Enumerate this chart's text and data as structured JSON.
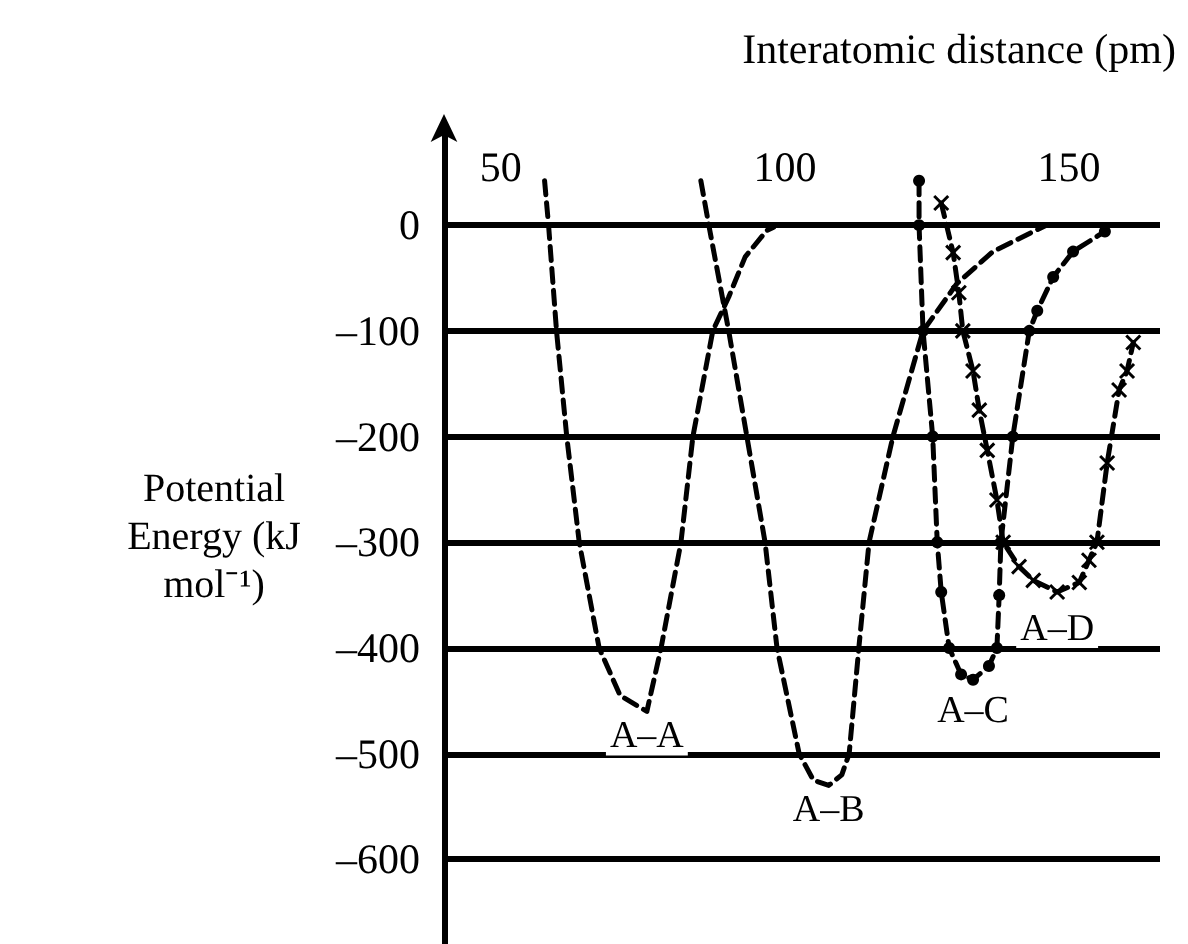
{
  "chart_data": {
    "type": "line",
    "xlabel": "Interatomic distance (pm)",
    "ylabel": "Potential Energy (kJ mol⁻¹)",
    "xlim": [
      40,
      166
    ],
    "xticks": [
      50,
      100,
      150
    ],
    "ylim": [
      -680,
      90
    ],
    "yticks": [
      0,
      {
        "value": -100,
        "label": "–100"
      },
      {
        "value": -200,
        "label": "–200"
      },
      {
        "value": -300,
        "label": "–300"
      },
      {
        "value": -400,
        "label": "–400"
      },
      {
        "value": -500,
        "label": "–500"
      },
      {
        "value": -600,
        "label": "–600"
      }
    ],
    "grid": "y",
    "line_style": "dashed",
    "series": [
      {
        "name": "A–A",
        "color": "#000000",
        "marker": "none",
        "x": [
          57.7,
          58.4,
          59.8,
          61.6,
          63.8,
          67.3,
          71,
          75.7,
          78.2,
          81.7,
          83.8,
          87.3,
          90.1,
          93,
          96.8,
          98
        ],
        "values": [
          42,
          0,
          -100,
          -200,
          -300,
          -400,
          -445,
          -460,
          -400,
          -300,
          -200,
          -100,
          -68,
          -30,
          -5,
          -2
        ]
      },
      {
        "name": "A–B",
        "color": "#000000",
        "marker": "none",
        "x": [
          85.2,
          86.6,
          90.1,
          93.3,
          96.5,
          98.6,
          102.5,
          105,
          107.7,
          110,
          111.3,
          113,
          114.8,
          119,
          124.3,
          130.3,
          136.6,
          146
        ],
        "values": [
          42,
          0,
          -100,
          -200,
          -300,
          -400,
          -500,
          -525,
          -530,
          -520,
          -500,
          -400,
          -300,
          -200,
          -100,
          -55,
          -25,
          0
        ]
      },
      {
        "name": "A–C",
        "color": "#000000",
        "marker": "circle",
        "x": [
          123.6,
          123.6,
          124.3,
          126,
          126.8,
          127.5,
          128.9,
          131,
          133.1,
          135.9,
          137.3,
          137.7,
          138,
          140.1,
          143,
          144.4,
          147.2,
          150.7,
          156.3
        ],
        "values": [
          42,
          0,
          -100,
          -200,
          -300,
          -347,
          -400,
          -425,
          -430,
          -417,
          -400,
          -350,
          -300,
          -200,
          -100,
          -81,
          -49,
          -25,
          -6
        ]
      },
      {
        "name": "A–D",
        "color": "#000000",
        "marker": "cross",
        "x": [
          127.5,
          129.6,
          130.6,
          131.3,
          133.1,
          134.2,
          135.6,
          137.3,
          138.4,
          141.2,
          143.7,
          147.9,
          151.8,
          153.5,
          154.9,
          156.7,
          158.8,
          160.2,
          161.3
        ],
        "values": [
          21,
          -26,
          -64,
          -100,
          -138,
          -175,
          -213,
          -260,
          -300,
          -323,
          -336,
          -347,
          -338,
          -317,
          -300,
          -225,
          -156,
          -138,
          -111
        ]
      }
    ]
  }
}
